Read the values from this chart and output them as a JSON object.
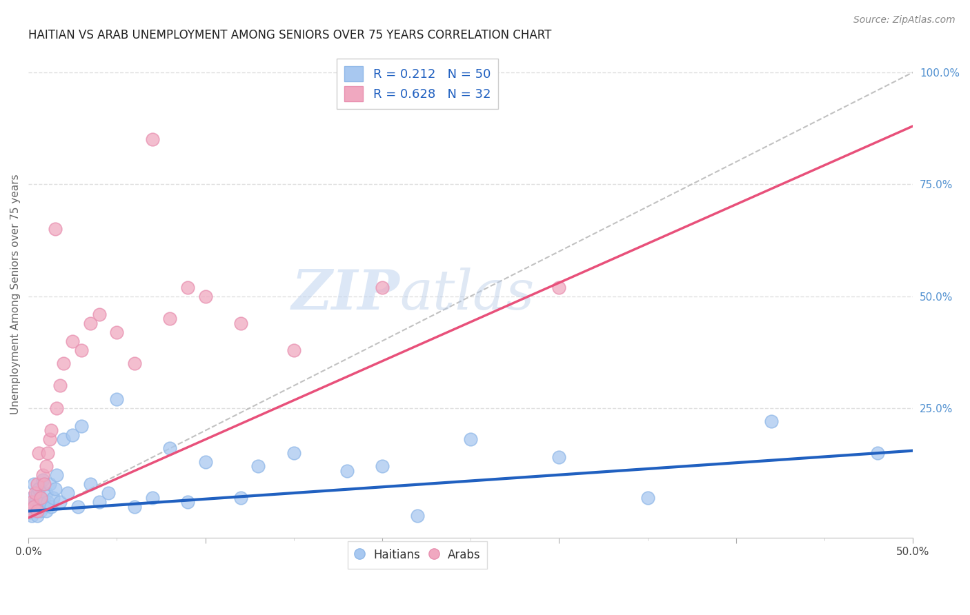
{
  "title": "HAITIAN VS ARAB UNEMPLOYMENT AMONG SENIORS OVER 75 YEARS CORRELATION CHART",
  "source": "Source: ZipAtlas.com",
  "ylabel": "Unemployment Among Seniors over 75 years",
  "xlim": [
    0.0,
    0.5
  ],
  "ylim": [
    -0.04,
    1.05
  ],
  "xticks": [
    0.0,
    0.1,
    0.2,
    0.3,
    0.4,
    0.5
  ],
  "xticklabels": [
    "0.0%",
    "",
    "",
    "",
    "",
    "50.0%"
  ],
  "yticks_right": [
    0.0,
    0.25,
    0.5,
    0.75,
    1.0
  ],
  "ytick_right_labels": [
    "",
    "25.0%",
    "50.0%",
    "75.0%",
    "100.0%"
  ],
  "haitian_R": 0.212,
  "haitian_N": 50,
  "arab_R": 0.628,
  "arab_N": 32,
  "haitian_color": "#a8c8f0",
  "arab_color": "#f0a8c0",
  "haitian_line_color": "#2060c0",
  "arab_line_color": "#e8507a",
  "ref_line_color": "#bbbbbb",
  "grid_color": "#e0e0e0",
  "watermark_zip": "ZIP",
  "watermark_atlas": "atlas",
  "title_color": "#222222",
  "axis_label_color": "#666666",
  "right_tick_color": "#5090d0",
  "haitian_x": [
    0.001,
    0.002,
    0.002,
    0.003,
    0.003,
    0.004,
    0.004,
    0.005,
    0.005,
    0.006,
    0.006,
    0.007,
    0.007,
    0.008,
    0.008,
    0.009,
    0.01,
    0.01,
    0.011,
    0.012,
    0.013,
    0.014,
    0.015,
    0.016,
    0.018,
    0.02,
    0.022,
    0.025,
    0.028,
    0.03,
    0.035,
    0.04,
    0.045,
    0.05,
    0.06,
    0.07,
    0.08,
    0.09,
    0.1,
    0.12,
    0.13,
    0.15,
    0.18,
    0.2,
    0.22,
    0.25,
    0.3,
    0.35,
    0.42,
    0.48
  ],
  "haitian_y": [
    0.02,
    0.05,
    0.01,
    0.03,
    0.08,
    0.02,
    0.04,
    0.01,
    0.06,
    0.03,
    0.07,
    0.02,
    0.05,
    0.03,
    0.09,
    0.04,
    0.02,
    0.06,
    0.04,
    0.08,
    0.03,
    0.05,
    0.07,
    0.1,
    0.04,
    0.18,
    0.06,
    0.19,
    0.03,
    0.21,
    0.08,
    0.04,
    0.06,
    0.27,
    0.03,
    0.05,
    0.16,
    0.04,
    0.13,
    0.05,
    0.12,
    0.15,
    0.11,
    0.12,
    0.01,
    0.18,
    0.14,
    0.05,
    0.22,
    0.15
  ],
  "arab_x": [
    0.001,
    0.002,
    0.003,
    0.004,
    0.005,
    0.005,
    0.006,
    0.007,
    0.008,
    0.009,
    0.01,
    0.011,
    0.012,
    0.013,
    0.015,
    0.016,
    0.018,
    0.02,
    0.025,
    0.03,
    0.035,
    0.04,
    0.05,
    0.06,
    0.07,
    0.08,
    0.09,
    0.1,
    0.12,
    0.15,
    0.2,
    0.3
  ],
  "arab_y": [
    0.02,
    0.04,
    0.03,
    0.06,
    0.02,
    0.08,
    0.15,
    0.05,
    0.1,
    0.08,
    0.12,
    0.15,
    0.18,
    0.2,
    0.65,
    0.25,
    0.3,
    0.35,
    0.4,
    0.38,
    0.44,
    0.46,
    0.42,
    0.35,
    0.85,
    0.45,
    0.52,
    0.5,
    0.44,
    0.38,
    0.52,
    0.52
  ],
  "haitian_line_x": [
    0.0,
    0.5
  ],
  "haitian_line_y": [
    0.02,
    0.155
  ],
  "arab_line_x": [
    0.0,
    0.5
  ],
  "arab_line_y": [
    0.005,
    0.88
  ]
}
